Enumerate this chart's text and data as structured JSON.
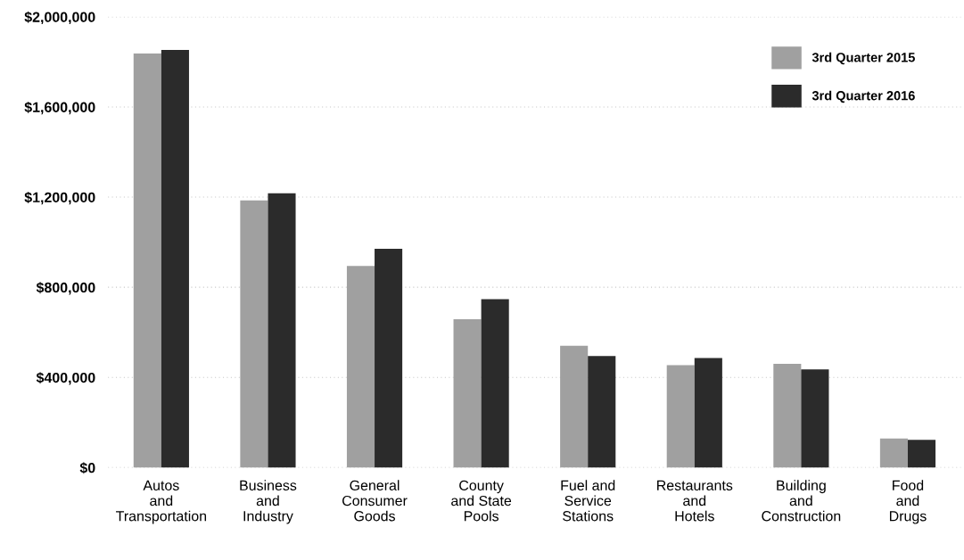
{
  "chart_data": {
    "type": "bar",
    "categories": [
      "Autos\nand\nTransportation",
      "Business\nand\nIndustry",
      "General\nConsumer\nGoods",
      "County\nand State\nPools",
      "Fuel and\nService\nStations",
      "Restaurants\nand\nHotels",
      "Building\nand\nConstruction",
      "Food\nand\nDrugs"
    ],
    "series": [
      {
        "name": "3rd Quarter 2015",
        "color": "#a0a0a0",
        "values": [
          1837000,
          1185000,
          895000,
          658000,
          541000,
          454000,
          460000,
          129000
        ]
      },
      {
        "name": "3rd Quarter 2016",
        "color": "#2b2b2b",
        "values": [
          1853000,
          1217000,
          971000,
          747000,
          495000,
          486000,
          436000,
          123000
        ]
      }
    ],
    "ylim": [
      0,
      2000000
    ],
    "yticks": [
      {
        "value": 0,
        "label": "$0"
      },
      {
        "value": 400000,
        "label": "$400,000"
      },
      {
        "value": 800000,
        "label": "$800,000"
      },
      {
        "value": 1200000,
        "label": "$1,200,000"
      },
      {
        "value": 1600000,
        "label": "$1,600,000"
      },
      {
        "value": 2000000,
        "label": "$2,000,000"
      }
    ],
    "grid": "y",
    "legend": "top right"
  }
}
